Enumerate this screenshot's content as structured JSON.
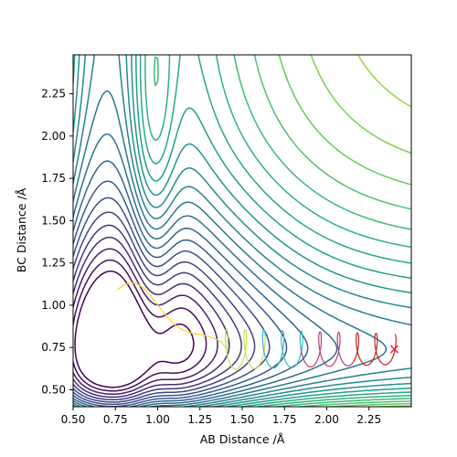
{
  "chart_data": {
    "type": "contour",
    "title": "",
    "xlabel": "AB Distance /Å",
    "ylabel": "BC Distance /Å",
    "xlim": [
      0.5,
      2.5
    ],
    "ylim": [
      0.4,
      2.48
    ],
    "xticks": [
      "0.50",
      "0.75",
      "1.00",
      "1.25",
      "1.50",
      "1.75",
      "2.00",
      "2.25"
    ],
    "yticks": [
      "0.50",
      "0.75",
      "1.00",
      "1.25",
      "1.50",
      "1.75",
      "2.00",
      "2.25"
    ],
    "grid": false,
    "legend": "none",
    "colormap": "viridis",
    "contour_levels": 26,
    "potential_energy_surface": {
      "minimum_well_corner": [
        0.74,
        0.74
      ],
      "exit_valley_y": 0.74,
      "entrance_valley_x": 0.74
    },
    "trajectory": {
      "start": [
        0.76,
        1.09
      ],
      "end": [
        2.4,
        0.74
      ],
      "colors": [
        "#ffd21f",
        "#c8e05a",
        "#3ab5c5",
        "#b83b7a",
        "#d21f1f"
      ],
      "end_marker_color": "#e8262d"
    },
    "end_marker": "x",
    "colors": {
      "low": "#440154",
      "mid": "#21918c",
      "high": "#fde725",
      "trajectory": "#ffd21f",
      "marker": "#e8262d"
    }
  }
}
